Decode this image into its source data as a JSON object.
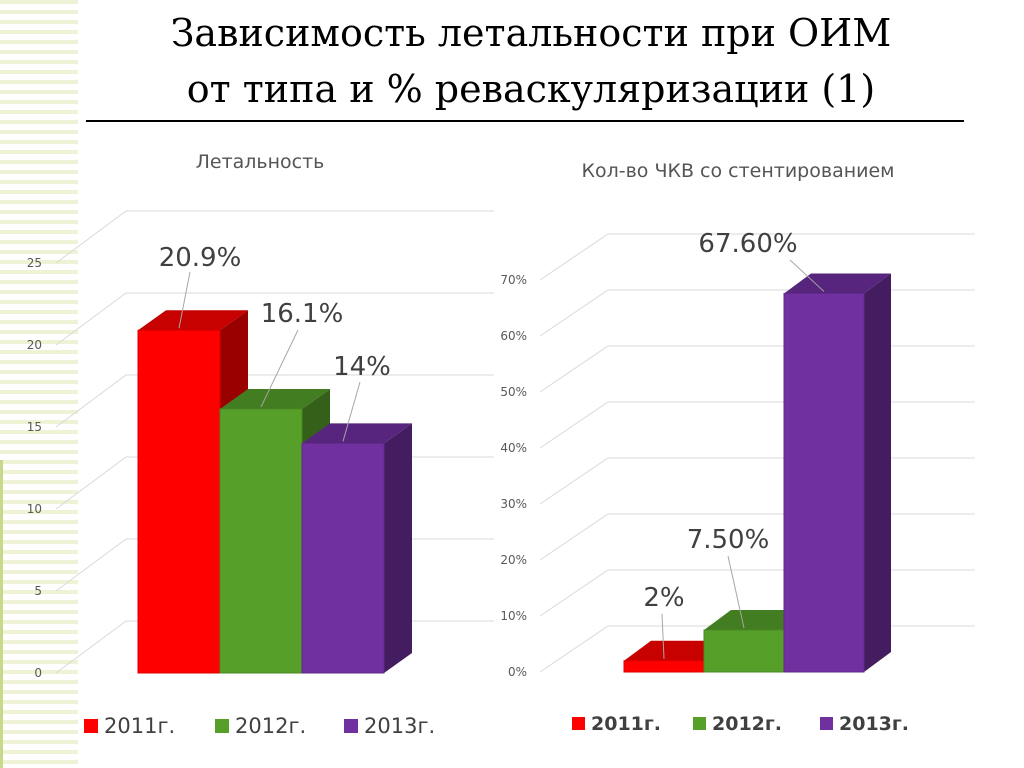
{
  "slide": {
    "title_line1": "Зависимость летальности при ОИМ",
    "title_line2": "от типа и % реваскуляризации (1)"
  },
  "colors": {
    "y2011": "#ff0000",
    "y2012": "#56a02a",
    "y2013": "#7030a0"
  },
  "chart_data": [
    {
      "type": "bar",
      "title": "Летальность",
      "categories": [
        "2011г.",
        "2012г.",
        "2013г."
      ],
      "values": [
        20.9,
        16.1,
        14
      ],
      "data_labels": [
        "20.9%",
        "16.1%",
        "14%"
      ],
      "yticks": [
        "0",
        "5",
        "10",
        "15",
        "20",
        "25"
      ],
      "ylim": [
        0,
        25
      ],
      "grid": true,
      "legend": "bottom",
      "legend_labels": [
        "2011г.",
        "2012г.",
        "2013г."
      ]
    },
    {
      "type": "bar",
      "title": "Кол-во ЧКВ со стентированием",
      "categories": [
        "2011г.",
        "2012г.",
        "2013г."
      ],
      "values": [
        2,
        7.5,
        67.6
      ],
      "data_labels": [
        "2%",
        "7.50%",
        "67.60%"
      ],
      "yticks": [
        "0%",
        "10%",
        "20%",
        "30%",
        "40%",
        "50%",
        "60%",
        "70%"
      ],
      "ylim": [
        0,
        70
      ],
      "grid": true,
      "legend": "bottom",
      "legend_labels": [
        "2011г.",
        "2012г.",
        "2013г."
      ]
    }
  ]
}
